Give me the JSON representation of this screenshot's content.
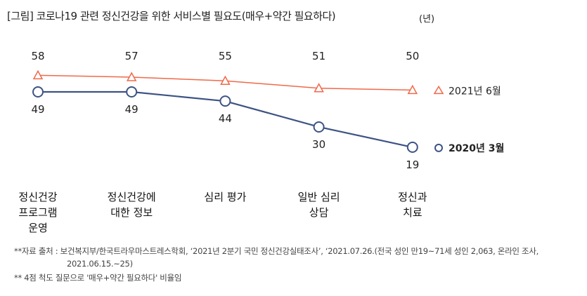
{
  "header": {
    "title": "[그림] 코로나19 관련 정신건강을 위한 서비스별 필요도(매우+약간 필요하다)",
    "unit": "(년)"
  },
  "chart_data": {
    "type": "line",
    "title": "[그림] 코로나19 관련 정신건강을 위한 서비스별 필요도(매우+약간 필요하다)",
    "categories": [
      "정신건강\n프로그램\n운영",
      "정신건강에\n대한 정보",
      "심리 평가",
      "일반 심리\n상담",
      "정신과\n치료"
    ],
    "series": [
      {
        "name": "2021년 6월",
        "values": [
          58,
          57,
          55,
          51,
          50
        ],
        "color": "#f0694a",
        "marker": "triangle"
      },
      {
        "name": "2020년 3월",
        "values": [
          49,
          49,
          44,
          30,
          19
        ],
        "color": "#3d5384",
        "marker": "circle"
      }
    ],
    "grid": false,
    "legend": "right"
  },
  "footer": {
    "source_line1": "**자료 출처 : 보건복지부/한국트라우마스트레스학회, ‘2021년 2분기 국민 정신건강실태조사’, ‘2021.07.26.(전국 성인 만19~71세 성인 2,063, 온라인 조사,",
    "source_line2": "2021.06.15.~25)",
    "note": "** 4점 척도 질문으로 '매우+약간 필요하다' 비율임"
  }
}
